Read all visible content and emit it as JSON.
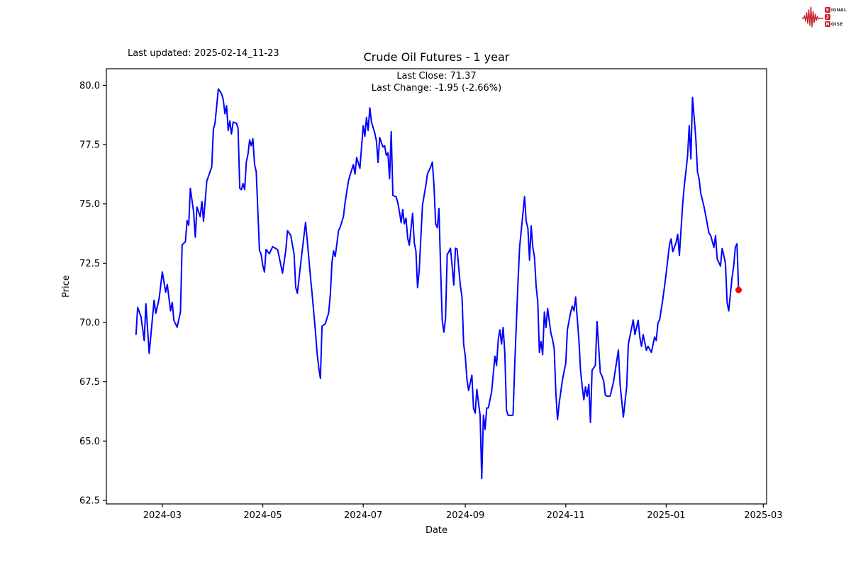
{
  "header": {
    "last_updated": "Last updated: 2025-02-14_11-23",
    "title": "Crude Oil Futures - 1 year",
    "subtitle_line1": "Last Close: 71.37",
    "subtitle_line2": "Last Change: -1.95 (-2.66%)"
  },
  "logo": {
    "word1_initial": "S",
    "word1_rest": "IGNAL",
    "word2": "2",
    "word3_initial": "N",
    "word3_rest": "OISE",
    "accent_color": "#c22026",
    "text_color": "#3a3a3a"
  },
  "chart_data": {
    "type": "line",
    "title": "Crude Oil Futures - 1 year",
    "xlabel": "Date",
    "ylabel": "Price",
    "line_color": "#0000ff",
    "marker_color": "#ff0000",
    "axis_color": "#000000",
    "grid": false,
    "legend": false,
    "last_close": 71.37,
    "last_change": -1.95,
    "last_change_pct": -2.66,
    "y_domain": [
      62.35,
      80.7
    ],
    "x_domain": [
      "2024-01-27",
      "2025-03-03"
    ],
    "y_ticks": [
      {
        "label": "80.0",
        "value": 80.0
      },
      {
        "label": "77.5",
        "value": 77.5
      },
      {
        "label": "75.0",
        "value": 75.0
      },
      {
        "label": "72.5",
        "value": 72.5
      },
      {
        "label": "70.0",
        "value": 70.0
      },
      {
        "label": "67.5",
        "value": 67.5
      },
      {
        "label": "65.0",
        "value": 65.0
      },
      {
        "label": "62.5",
        "value": 62.5
      }
    ],
    "x_ticks": [
      {
        "label": "2024-03",
        "date": "2024-03-01"
      },
      {
        "label": "2024-05",
        "date": "2024-05-01"
      },
      {
        "label": "2024-07",
        "date": "2024-07-01"
      },
      {
        "label": "2024-09",
        "date": "2024-09-01"
      },
      {
        "label": "2024-11",
        "date": "2024-11-01"
      },
      {
        "label": "2025-01",
        "date": "2025-01-01"
      },
      {
        "label": "2025-03",
        "date": "2025-03-01"
      }
    ],
    "series": [
      [
        "2024-02-14",
        69.5
      ],
      [
        "2024-02-15",
        70.64
      ],
      [
        "2024-02-17",
        70.24
      ],
      [
        "2024-02-19",
        69.24
      ],
      [
        "2024-02-20",
        70.79
      ],
      [
        "2024-02-22",
        68.7
      ],
      [
        "2024-02-25",
        70.94
      ],
      [
        "2024-02-26",
        70.39
      ],
      [
        "2024-02-28",
        70.99
      ],
      [
        "2024-03-01",
        72.13
      ],
      [
        "2024-03-03",
        71.28
      ],
      [
        "2024-03-04",
        71.6
      ],
      [
        "2024-03-06",
        70.49
      ],
      [
        "2024-03-07",
        70.85
      ],
      [
        "2024-03-08",
        70.09
      ],
      [
        "2024-03-10",
        69.8
      ],
      [
        "2024-03-12",
        70.45
      ],
      [
        "2024-03-13",
        73.28
      ],
      [
        "2024-03-15",
        73.4
      ],
      [
        "2024-03-16",
        74.3
      ],
      [
        "2024-03-17",
        74.1
      ],
      [
        "2024-03-18",
        75.66
      ],
      [
        "2024-03-20",
        74.67
      ],
      [
        "2024-03-21",
        73.6
      ],
      [
        "2024-03-22",
        74.87
      ],
      [
        "2024-03-24",
        74.47
      ],
      [
        "2024-03-25",
        75.1
      ],
      [
        "2024-03-26",
        74.27
      ],
      [
        "2024-03-28",
        75.96
      ],
      [
        "2024-03-29",
        76.16
      ],
      [
        "2024-03-31",
        76.56
      ],
      [
        "2024-04-01",
        78.15
      ],
      [
        "2024-04-02",
        78.4
      ],
      [
        "2024-04-04",
        79.85
      ],
      [
        "2024-04-06",
        79.64
      ],
      [
        "2024-04-07",
        79.4
      ],
      [
        "2024-04-08",
        78.8
      ],
      [
        "2024-04-09",
        79.14
      ],
      [
        "2024-04-10",
        78.1
      ],
      [
        "2024-04-11",
        78.5
      ],
      [
        "2024-04-12",
        77.95
      ],
      [
        "2024-04-13",
        78.45
      ],
      [
        "2024-04-15",
        78.4
      ],
      [
        "2024-04-16",
        78.2
      ],
      [
        "2024-04-17",
        75.66
      ],
      [
        "2024-04-18",
        75.6
      ],
      [
        "2024-04-19",
        75.86
      ],
      [
        "2024-04-20",
        75.6
      ],
      [
        "2024-04-21",
        76.76
      ],
      [
        "2024-04-22",
        77.1
      ],
      [
        "2024-04-23",
        77.7
      ],
      [
        "2024-04-24",
        77.45
      ],
      [
        "2024-04-25",
        77.75
      ],
      [
        "2024-04-26",
        76.66
      ],
      [
        "2024-04-27",
        76.36
      ],
      [
        "2024-04-29",
        73.03
      ],
      [
        "2024-04-30",
        72.88
      ],
      [
        "2024-05-01",
        72.4
      ],
      [
        "2024-05-02",
        72.13
      ],
      [
        "2024-05-03",
        73.08
      ],
      [
        "2024-05-05",
        72.9
      ],
      [
        "2024-05-07",
        73.2
      ],
      [
        "2024-05-10",
        73.07
      ],
      [
        "2024-05-13",
        72.08
      ],
      [
        "2024-05-15",
        73.07
      ],
      [
        "2024-05-16",
        73.87
      ],
      [
        "2024-05-18",
        73.67
      ],
      [
        "2024-05-20",
        72.88
      ],
      [
        "2024-05-21",
        71.48
      ],
      [
        "2024-05-22",
        71.23
      ],
      [
        "2024-05-24",
        72.48
      ],
      [
        "2024-05-25",
        73.07
      ],
      [
        "2024-05-27",
        74.22
      ],
      [
        "2024-05-28",
        73.47
      ],
      [
        "2024-05-29",
        72.68
      ],
      [
        "2024-05-30",
        71.88
      ],
      [
        "2024-05-31",
        71.18
      ],
      [
        "2024-06-01",
        70.39
      ],
      [
        "2024-06-02",
        69.59
      ],
      [
        "2024-06-03",
        68.69
      ],
      [
        "2024-06-04",
        68.09
      ],
      [
        "2024-06-05",
        67.64
      ],
      [
        "2024-06-06",
        69.84
      ],
      [
        "2024-06-08",
        69.95
      ],
      [
        "2024-06-09",
        70.19
      ],
      [
        "2024-06-10",
        70.39
      ],
      [
        "2024-06-11",
        71.18
      ],
      [
        "2024-06-12",
        72.53
      ],
      [
        "2024-06-13",
        73.02
      ],
      [
        "2024-06-14",
        72.78
      ],
      [
        "2024-06-16",
        73.87
      ],
      [
        "2024-06-17",
        74.02
      ],
      [
        "2024-06-19",
        74.47
      ],
      [
        "2024-06-20",
        75.06
      ],
      [
        "2024-06-22",
        75.96
      ],
      [
        "2024-06-23",
        76.21
      ],
      [
        "2024-06-25",
        76.66
      ],
      [
        "2024-06-26",
        76.26
      ],
      [
        "2024-06-27",
        76.96
      ],
      [
        "2024-06-29",
        76.5
      ],
      [
        "2024-07-01",
        78.3
      ],
      [
        "2024-07-02",
        77.85
      ],
      [
        "2024-07-03",
        78.65
      ],
      [
        "2024-07-04",
        78.1
      ],
      [
        "2024-07-05",
        79.05
      ],
      [
        "2024-07-06",
        78.45
      ],
      [
        "2024-07-08",
        78.0
      ],
      [
        "2024-07-09",
        77.65
      ],
      [
        "2024-07-10",
        76.75
      ],
      [
        "2024-07-11",
        77.8
      ],
      [
        "2024-07-13",
        77.4
      ],
      [
        "2024-07-14",
        77.45
      ],
      [
        "2024-07-15",
        77.05
      ],
      [
        "2024-07-16",
        77.15
      ],
      [
        "2024-07-17",
        76.06
      ],
      [
        "2024-07-18",
        78.05
      ],
      [
        "2024-07-19",
        75.36
      ],
      [
        "2024-07-21",
        75.3
      ],
      [
        "2024-07-22",
        75.06
      ],
      [
        "2024-07-23",
        74.66
      ],
      [
        "2024-07-24",
        74.21
      ],
      [
        "2024-07-25",
        74.76
      ],
      [
        "2024-07-26",
        74.16
      ],
      [
        "2024-07-27",
        74.4
      ],
      [
        "2024-07-28",
        73.56
      ],
      [
        "2024-07-29",
        73.26
      ],
      [
        "2024-07-31",
        74.61
      ],
      [
        "2024-08-01",
        73.36
      ],
      [
        "2024-08-02",
        73.01
      ],
      [
        "2024-08-03",
        71.47
      ],
      [
        "2024-08-04",
        72.18
      ],
      [
        "2024-08-05",
        73.56
      ],
      [
        "2024-08-06",
        74.96
      ],
      [
        "2024-08-08",
        75.76
      ],
      [
        "2024-08-09",
        76.26
      ],
      [
        "2024-08-11",
        76.56
      ],
      [
        "2024-08-12",
        76.76
      ],
      [
        "2024-08-13",
        75.76
      ],
      [
        "2024-08-14",
        74.16
      ],
      [
        "2024-08-15",
        74.0
      ],
      [
        "2024-08-16",
        74.81
      ],
      [
        "2024-08-17",
        72.26
      ],
      [
        "2024-08-18",
        70.09
      ],
      [
        "2024-08-19",
        69.59
      ],
      [
        "2024-08-20",
        70.19
      ],
      [
        "2024-08-21",
        72.87
      ],
      [
        "2024-08-22",
        72.98
      ],
      [
        "2024-08-23",
        73.13
      ],
      [
        "2024-08-24",
        72.38
      ],
      [
        "2024-08-25",
        71.58
      ],
      [
        "2024-08-26",
        73.13
      ],
      [
        "2024-08-27",
        73.1
      ],
      [
        "2024-08-29",
        71.53
      ],
      [
        "2024-08-30",
        71.08
      ],
      [
        "2024-08-31",
        69.08
      ],
      [
        "2024-09-01",
        68.58
      ],
      [
        "2024-09-02",
        67.58
      ],
      [
        "2024-09-03",
        67.13
      ],
      [
        "2024-09-05",
        67.78
      ],
      [
        "2024-09-06",
        66.38
      ],
      [
        "2024-09-07",
        66.18
      ],
      [
        "2024-09-08",
        67.18
      ],
      [
        "2024-09-10",
        66.08
      ],
      [
        "2024-09-11",
        63.42
      ],
      [
        "2024-09-12",
        66.09
      ],
      [
        "2024-09-13",
        65.49
      ],
      [
        "2024-09-14",
        66.39
      ],
      [
        "2024-09-15",
        66.4
      ],
      [
        "2024-09-17",
        67.09
      ],
      [
        "2024-09-18",
        67.84
      ],
      [
        "2024-09-19",
        68.58
      ],
      [
        "2024-09-20",
        68.19
      ],
      [
        "2024-09-21",
        69.28
      ],
      [
        "2024-09-22",
        69.69
      ],
      [
        "2024-09-23",
        69.09
      ],
      [
        "2024-09-24",
        69.79
      ],
      [
        "2024-09-25",
        68.69
      ],
      [
        "2024-09-26",
        66.29
      ],
      [
        "2024-09-27",
        66.09
      ],
      [
        "2024-09-29",
        66.08
      ],
      [
        "2024-09-30",
        66.1
      ],
      [
        "2024-10-01",
        68.19
      ],
      [
        "2024-10-03",
        71.68
      ],
      [
        "2024-10-04",
        73.17
      ],
      [
        "2024-10-07",
        75.31
      ],
      [
        "2024-10-08",
        74.27
      ],
      [
        "2024-10-09",
        73.97
      ],
      [
        "2024-10-10",
        72.63
      ],
      [
        "2024-10-11",
        74.07
      ],
      [
        "2024-10-12",
        73.17
      ],
      [
        "2024-10-13",
        72.78
      ],
      [
        "2024-10-14",
        71.53
      ],
      [
        "2024-10-15",
        70.88
      ],
      [
        "2024-10-16",
        68.74
      ],
      [
        "2024-10-17",
        69.2
      ],
      [
        "2024-10-18",
        68.64
      ],
      [
        "2024-10-19",
        70.44
      ],
      [
        "2024-10-20",
        69.79
      ],
      [
        "2024-10-21",
        70.59
      ],
      [
        "2024-10-23",
        69.54
      ],
      [
        "2024-10-24",
        69.28
      ],
      [
        "2024-10-25",
        68.89
      ],
      [
        "2024-10-26",
        67.04
      ],
      [
        "2024-10-27",
        65.9
      ],
      [
        "2024-10-28",
        66.59
      ],
      [
        "2024-10-30",
        67.58
      ],
      [
        "2024-11-01",
        68.29
      ],
      [
        "2024-11-02",
        69.7
      ],
      [
        "2024-11-04",
        70.44
      ],
      [
        "2024-11-05",
        70.69
      ],
      [
        "2024-11-06",
        70.49
      ],
      [
        "2024-11-07",
        71.07
      ],
      [
        "2024-11-09",
        69.28
      ],
      [
        "2024-11-10",
        67.99
      ],
      [
        "2024-11-11",
        67.29
      ],
      [
        "2024-11-12",
        66.74
      ],
      [
        "2024-11-13",
        67.29
      ],
      [
        "2024-11-14",
        66.89
      ],
      [
        "2024-11-15",
        67.39
      ],
      [
        "2024-11-16",
        65.79
      ],
      [
        "2024-11-17",
        67.99
      ],
      [
        "2024-11-19",
        68.19
      ],
      [
        "2024-11-20",
        70.04
      ],
      [
        "2024-11-22",
        67.89
      ],
      [
        "2024-11-23",
        67.74
      ],
      [
        "2024-11-24",
        67.54
      ],
      [
        "2024-11-25",
        66.94
      ],
      [
        "2024-11-26",
        66.89
      ],
      [
        "2024-11-28",
        66.9
      ],
      [
        "2024-11-30",
        67.49
      ],
      [
        "2024-12-03",
        68.84
      ],
      [
        "2024-12-04",
        67.39
      ],
      [
        "2024-12-06",
        66.01
      ],
      [
        "2024-12-08",
        67.29
      ],
      [
        "2024-12-09",
        69.08
      ],
      [
        "2024-12-12",
        70.11
      ],
      [
        "2024-12-13",
        69.49
      ],
      [
        "2024-12-15",
        70.09
      ],
      [
        "2024-12-16",
        69.39
      ],
      [
        "2024-12-17",
        68.99
      ],
      [
        "2024-12-18",
        69.49
      ],
      [
        "2024-12-20",
        68.83
      ],
      [
        "2024-12-21",
        69.0
      ],
      [
        "2024-12-23",
        68.74
      ],
      [
        "2024-12-25",
        69.39
      ],
      [
        "2024-12-26",
        69.24
      ],
      [
        "2024-12-27",
        69.99
      ],
      [
        "2024-12-28",
        70.1
      ],
      [
        "2024-12-30",
        70.99
      ],
      [
        "2024-12-31",
        71.53
      ],
      [
        "2025-01-01",
        72.08
      ],
      [
        "2025-01-03",
        73.27
      ],
      [
        "2025-01-04",
        73.52
      ],
      [
        "2025-01-05",
        72.98
      ],
      [
        "2025-01-07",
        73.37
      ],
      [
        "2025-01-08",
        73.72
      ],
      [
        "2025-01-09",
        72.83
      ],
      [
        "2025-01-11",
        74.97
      ],
      [
        "2025-01-12",
        75.76
      ],
      [
        "2025-01-13",
        76.36
      ],
      [
        "2025-01-14",
        77.05
      ],
      [
        "2025-01-15",
        78.3
      ],
      [
        "2025-01-16",
        76.9
      ],
      [
        "2025-01-17",
        79.49
      ],
      [
        "2025-01-18",
        78.65
      ],
      [
        "2025-01-19",
        77.75
      ],
      [
        "2025-01-20",
        76.36
      ],
      [
        "2025-01-21",
        76.06
      ],
      [
        "2025-01-22",
        75.46
      ],
      [
        "2025-01-24",
        74.87
      ],
      [
        "2025-01-25",
        74.52
      ],
      [
        "2025-01-27",
        73.77
      ],
      [
        "2025-01-28",
        73.67
      ],
      [
        "2025-01-30",
        73.17
      ],
      [
        "2025-01-31",
        73.67
      ],
      [
        "2025-02-01",
        72.68
      ],
      [
        "2025-02-02",
        72.53
      ],
      [
        "2025-02-03",
        72.38
      ],
      [
        "2025-02-04",
        73.12
      ],
      [
        "2025-02-05",
        72.83
      ],
      [
        "2025-02-06",
        72.48
      ],
      [
        "2025-02-07",
        70.84
      ],
      [
        "2025-02-08",
        70.49
      ],
      [
        "2025-02-10",
        71.88
      ],
      [
        "2025-02-11",
        72.38
      ],
      [
        "2025-02-12",
        73.17
      ],
      [
        "2025-02-13",
        73.32
      ],
      [
        "2025-02-14",
        71.37
      ]
    ]
  }
}
